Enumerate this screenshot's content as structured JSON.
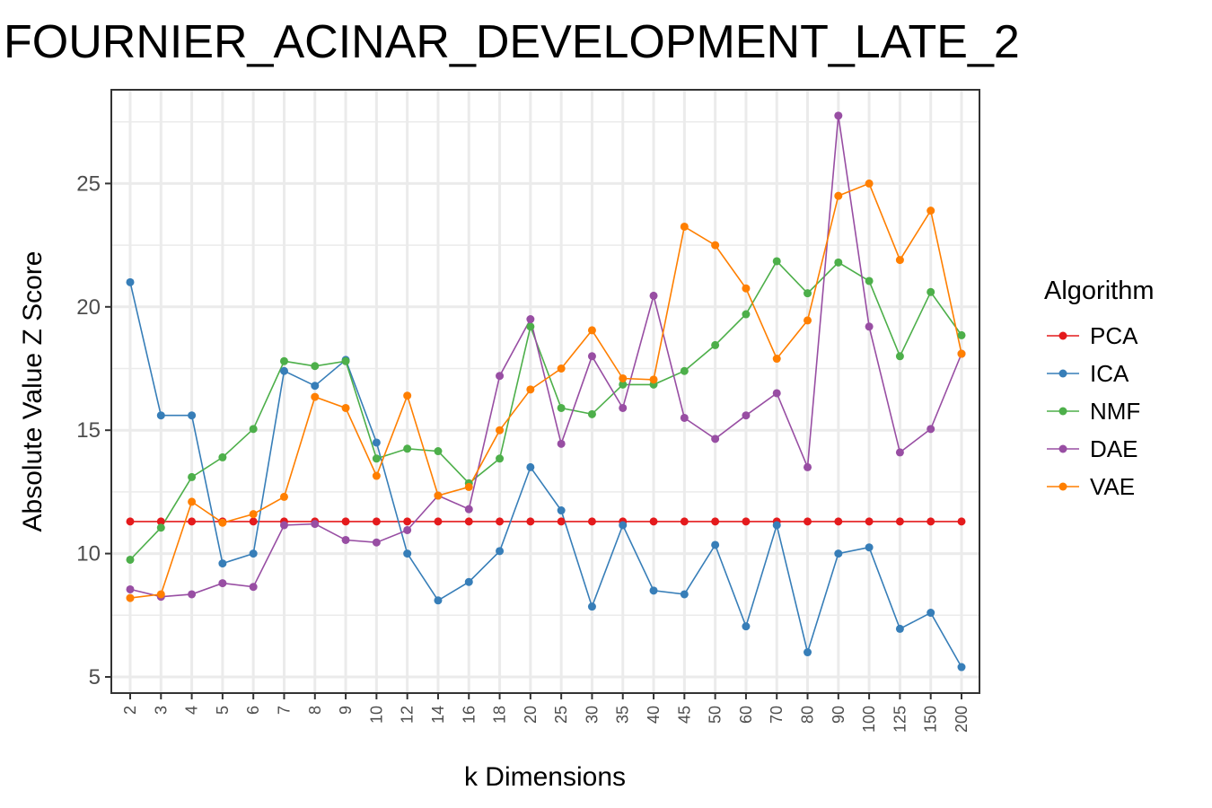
{
  "chart_data": {
    "type": "line",
    "title": "FOURNIER_ACINAR_DEVELOPMENT_LATE_2",
    "xlabel": "k Dimensions",
    "ylabel": "Absolute Value Z Score",
    "categories": [
      "2",
      "3",
      "4",
      "5",
      "6",
      "7",
      "8",
      "9",
      "10",
      "12",
      "14",
      "16",
      "18",
      "20",
      "25",
      "30",
      "35",
      "40",
      "45",
      "50",
      "60",
      "70",
      "80",
      "90",
      "100",
      "125",
      "150",
      "200"
    ],
    "yticks": [
      5,
      10,
      15,
      20,
      25
    ],
    "ylim": [
      4.3,
      28.5
    ],
    "grid": true,
    "legend": {
      "title": "Algorithm",
      "position": "right"
    },
    "series": [
      {
        "name": "PCA",
        "color": "#E41A1C",
        "values": [
          11.3,
          11.3,
          11.3,
          11.3,
          11.3,
          11.3,
          11.3,
          11.3,
          11.3,
          11.3,
          11.3,
          11.3,
          11.3,
          11.3,
          11.3,
          11.3,
          11.3,
          11.3,
          11.3,
          11.3,
          11.3,
          11.3,
          11.3,
          11.3,
          11.3,
          11.3,
          11.3,
          11.3
        ]
      },
      {
        "name": "ICA",
        "color": "#377EB8",
        "values": [
          21.0,
          15.6,
          15.6,
          9.6,
          10.0,
          17.4,
          16.8,
          17.85,
          14.5,
          10.0,
          8.1,
          8.85,
          10.1,
          13.5,
          11.75,
          7.85,
          11.15,
          8.5,
          8.35,
          10.35,
          7.05,
          11.15,
          6.0,
          10.0,
          10.25,
          6.95,
          7.6,
          5.4
        ]
      },
      {
        "name": "NMF",
        "color": "#4DAF4A",
        "values": [
          9.75,
          11.05,
          13.1,
          13.9,
          15.05,
          17.8,
          17.6,
          17.8,
          13.85,
          14.25,
          14.15,
          12.85,
          13.85,
          19.2,
          15.9,
          15.65,
          16.85,
          16.85,
          17.4,
          18.45,
          19.7,
          21.85,
          20.55,
          21.8,
          21.05,
          18.0,
          20.6,
          18.85
        ]
      },
      {
        "name": "DAE",
        "color": "#984EA3",
        "values": [
          8.55,
          8.25,
          8.35,
          8.8,
          8.65,
          11.15,
          11.2,
          10.55,
          10.45,
          10.95,
          12.35,
          11.8,
          17.2,
          19.5,
          14.45,
          18.0,
          15.9,
          20.45,
          15.5,
          14.65,
          15.6,
          16.5,
          13.5,
          27.75,
          19.2,
          14.1,
          15.05,
          18.1
        ]
      },
      {
        "name": "VAE",
        "color": "#FF7F00",
        "values": [
          8.2,
          8.35,
          12.1,
          11.25,
          11.6,
          12.3,
          16.35,
          15.9,
          13.15,
          16.4,
          12.35,
          12.7,
          15.0,
          16.65,
          17.5,
          19.05,
          17.1,
          17.05,
          23.25,
          22.5,
          20.75,
          17.9,
          19.45,
          24.5,
          25.0,
          21.9,
          23.9,
          18.1
        ]
      }
    ]
  }
}
